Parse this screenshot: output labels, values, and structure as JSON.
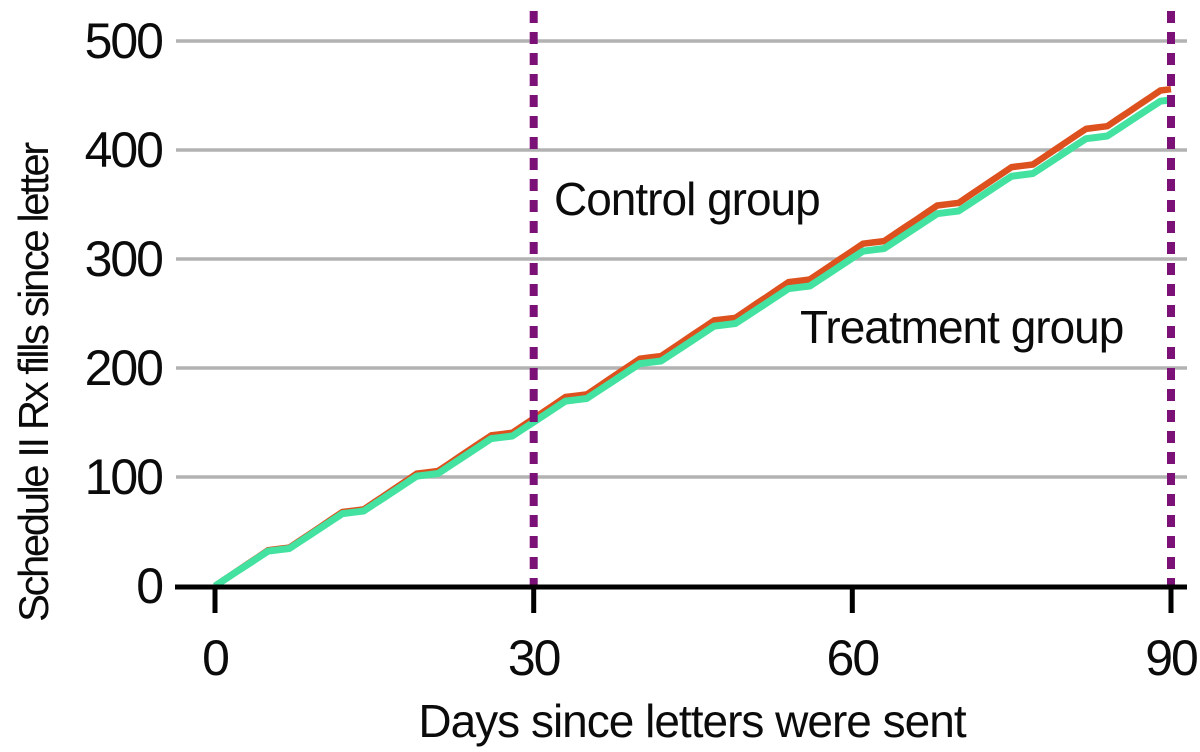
{
  "chart_data": {
    "type": "line",
    "title": "",
    "xlabel": "Days since letters were sent",
    "ylabel": "Schedule II Rx fills since letter",
    "xlim": [
      0,
      90
    ],
    "ylim": [
      0,
      500
    ],
    "xticks": [
      0,
      30,
      60,
      90
    ],
    "yticks": [
      0,
      100,
      200,
      300,
      400,
      500
    ],
    "grid": "horizontal-only",
    "grid_color": "#b2b2b2",
    "axis_color": "#000000",
    "text_color": "#0b0b0b",
    "legend": "inline-text-annotations",
    "x_days": [
      0,
      1,
      2,
      3,
      4,
      5,
      6,
      7,
      8,
      9,
      10,
      11,
      12,
      13,
      14,
      15,
      16,
      17,
      18,
      19,
      20,
      21,
      22,
      23,
      24,
      25,
      26,
      27,
      28,
      29,
      30,
      31,
      32,
      33,
      34,
      35,
      36,
      37,
      38,
      39,
      40,
      41,
      42,
      43,
      44,
      45,
      46,
      47,
      48,
      49,
      50,
      51,
      52,
      53,
      54,
      55,
      56,
      57,
      58,
      59,
      60,
      61,
      62,
      63,
      64,
      65,
      66,
      67,
      68,
      69,
      70,
      71,
      72,
      73,
      74,
      75,
      76,
      77,
      78,
      79,
      80,
      81,
      82,
      83,
      84,
      85,
      86,
      87,
      88,
      89,
      90
    ],
    "series": [
      {
        "name": "Control group",
        "color": "#dc511d",
        "values": [
          0,
          6.6,
          13.1,
          19.7,
          26.2,
          32.8,
          34,
          35.2,
          41.7,
          48.3,
          54.8,
          61.4,
          67.9,
          69.1,
          70.3,
          76.9,
          83.4,
          90,
          96.5,
          103.1,
          104.3,
          105.5,
          112,
          118.6,
          125.1,
          131.7,
          138.2,
          139.4,
          140.6,
          147.2,
          153.7,
          160.3,
          166.8,
          173.4,
          174.6,
          175.8,
          182.3,
          188.9,
          195.4,
          202,
          208.5,
          209.7,
          210.9,
          217.5,
          224,
          230.6,
          237.1,
          243.7,
          244.9,
          246.1,
          252.6,
          259.2,
          265.7,
          272.3,
          278.8,
          280,
          281.2,
          287.8,
          294.3,
          300.9,
          307.4,
          314,
          315.2,
          316.4,
          322.9,
          329.5,
          336,
          342.6,
          349.1,
          350.3,
          351.5,
          358.1,
          364.6,
          371.2,
          377.7,
          384.3,
          385.5,
          386.7,
          393.2,
          399.8,
          406.3,
          412.9,
          419.4,
          420.6,
          421.8,
          428.4,
          434.9,
          441.5,
          448,
          454.6,
          455.8
        ]
      },
      {
        "name": "Treatment group",
        "color": "#43e2a1",
        "values": [
          0,
          6.4,
          12.8,
          19.2,
          25.6,
          32,
          33.2,
          34.4,
          40.8,
          47.2,
          53.6,
          60,
          66.4,
          67.6,
          68.8,
          75.2,
          81.6,
          88,
          94.4,
          100.8,
          102,
          103.2,
          109.6,
          116,
          122.4,
          128.8,
          135.2,
          136.4,
          137.6,
          144,
          150.4,
          156.8,
          163.2,
          169.6,
          170.8,
          172,
          178.4,
          184.8,
          191.2,
          197.6,
          204,
          205.2,
          206.4,
          212.8,
          219.2,
          225.6,
          232,
          238.4,
          239.6,
          240.8,
          247.2,
          253.6,
          260,
          266.4,
          272.8,
          274,
          275.2,
          281.6,
          288,
          294.4,
          300.8,
          307.2,
          308.4,
          309.6,
          316,
          322.4,
          328.8,
          335.2,
          341.6,
          342.8,
          344,
          350.4,
          356.8,
          363.2,
          369.6,
          376,
          377.2,
          378.4,
          384.8,
          391.2,
          397.6,
          404,
          410.4,
          411.6,
          412.8,
          419.2,
          425.6,
          432,
          438.4,
          444.8,
          446
        ]
      }
    ],
    "reference_lines": {
      "style": "dashed",
      "color": "#7b1076",
      "days": [
        30,
        90
      ]
    }
  }
}
